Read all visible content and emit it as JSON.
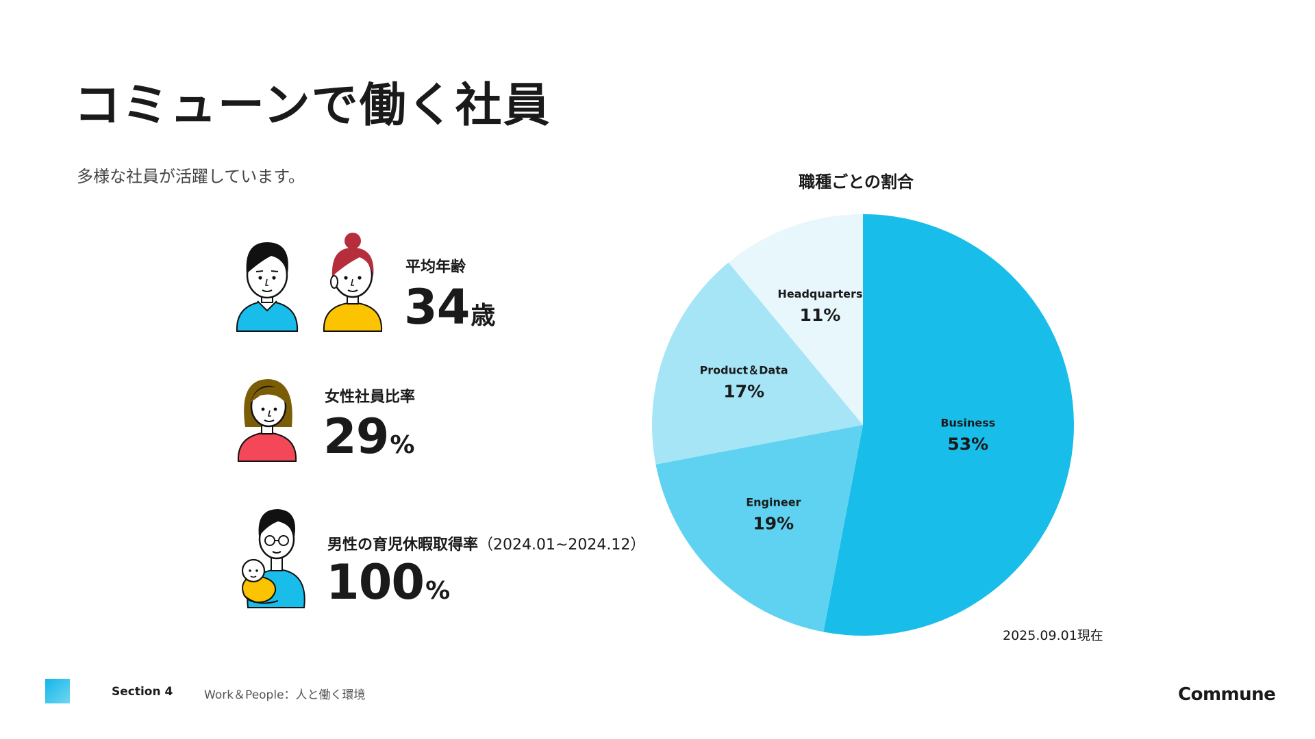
{
  "page": {
    "title": "コミューンで働く社員",
    "subtitle": "多様な社員が活躍しています。"
  },
  "stats": {
    "age": {
      "label": "平均年齢",
      "value": "34",
      "unit": "歳"
    },
    "female_ratio": {
      "label": "女性社員比率",
      "value": "29",
      "unit": "%"
    },
    "paternity_leave": {
      "label": "男性の育児休暇取得率",
      "period": "（2024.01~2024.12）",
      "value": "100",
      "unit": "%"
    }
  },
  "chart_data": {
    "type": "pie",
    "title": "職種ごとの割合",
    "start_angle": "12 o'clock",
    "direction": "clockwise",
    "slices": [
      {
        "label": "Business",
        "value": 53,
        "display": "53%",
        "color": "#19bde9"
      },
      {
        "label": "Engineer",
        "value": 19,
        "display": "19%",
        "color": "#5fd2f1"
      },
      {
        "label": "Product＆Data",
        "value": 17,
        "display": "17%",
        "color": "#a6e5f6"
      },
      {
        "label": "Headquarters",
        "value": 11,
        "display": "11%",
        "color": "#e7f7fc"
      }
    ],
    "note": "2025.09.01現在"
  },
  "footer": {
    "section": "Section 4",
    "topic": "Work＆People：人と働く環境",
    "logo": "Commune"
  },
  "colors": {
    "accent": "#19bde9",
    "yellow": "#fcc300",
    "red": "#f44858",
    "hair_red": "#b62e3c",
    "hair_brown": "#7b5c07"
  }
}
